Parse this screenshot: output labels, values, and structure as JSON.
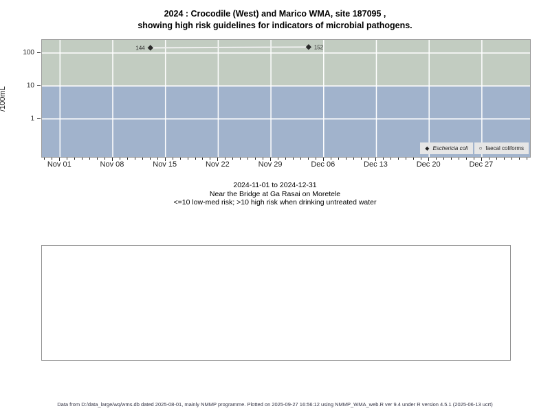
{
  "title": {
    "line1": "2024 : Crocodile (West) and Marico WMA, site 187095 ,",
    "line2": "showing high risk guidelines for indicators of microbial pathogens."
  },
  "y_axis": {
    "label": "/100mL"
  },
  "chart_data": {
    "type": "scatter",
    "y_scale": "log",
    "ylabel": "/100mL",
    "ylim": [
      0.07,
      250
    ],
    "y_ticks": [
      100,
      10,
      1
    ],
    "x_origin": "2024-11-01",
    "xlim_days": [
      -2.4,
      62.4
    ],
    "x_minor_tick_every_days": 1,
    "x_major_ticks": [
      {
        "day": 0,
        "label": "Nov 01"
      },
      {
        "day": 7,
        "label": "Nov 08"
      },
      {
        "day": 14,
        "label": "Nov 15"
      },
      {
        "day": 21,
        "label": "Nov 22"
      },
      {
        "day": 28,
        "label": "Nov 29"
      },
      {
        "day": 35,
        "label": "Dec 06"
      },
      {
        "day": 42,
        "label": "Dec 13"
      },
      {
        "day": 49,
        "label": "Dec 20"
      },
      {
        "day": 56,
        "label": "Dec 27"
      }
    ],
    "bands": [
      {
        "name": "high-risk-zone",
        "from": 10,
        "to": 250,
        "color": "#c2ccc1"
      },
      {
        "name": "low-med-risk-zone",
        "from": 0.07,
        "to": 10,
        "color": "#a1b3cc"
      }
    ],
    "grid_color": "#ffffff",
    "connector_color": "#efefef",
    "series": [
      {
        "name": "Eschericia coli",
        "marker": "filled-diamond",
        "color": "#2a2a2a",
        "points": [
          {
            "day": 12,
            "date": "2024-11-13",
            "value": 144,
            "label": "144",
            "label_side": "left"
          },
          {
            "day": 33,
            "date": "2024-12-04",
            "value": 152,
            "label": "152",
            "label_side": "right"
          }
        ]
      },
      {
        "name": "faecal coliforms",
        "marker": "open-circle",
        "color": "#2a2a2a",
        "points": []
      }
    ]
  },
  "legend": {
    "items": [
      {
        "marker": "filled-diamond",
        "label": "Eschericia coli",
        "italic": true
      },
      {
        "marker": "open-circle",
        "label": "faecal coliforms",
        "italic": false
      }
    ]
  },
  "subtitle": {
    "line1": "2024-11-01 to 2024-12-31",
    "line2": "Near the Bridge at Ga Rasai on Moretele",
    "line3": "<=10 low-med risk; >10 high risk when drinking untreated water"
  },
  "footer": {
    "text": "Data from D:/data_large/wq/wms.db dated 2025-08-01, mainly NMMP programme. Plotted on 2025-09-27 16:56:12 using NMMP_WMA_web.R ver 9.4 under R version 4.5.1 (2025-06-13 ucrt)"
  }
}
